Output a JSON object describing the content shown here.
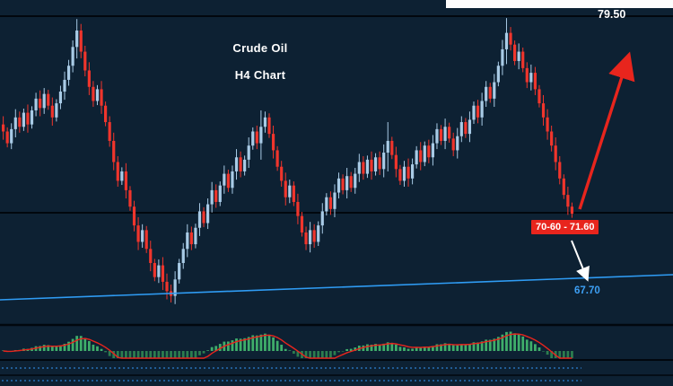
{
  "header": {
    "title_line1": "Crude Oil",
    "title_line2": "H4 Chart"
  },
  "labels": {
    "top_price": "79.50",
    "zone": "70-60 - 71.60",
    "support": "67.70"
  },
  "colors": {
    "background": "#0d2133",
    "bull_candle": "#a9cbe6",
    "bear_candle": "#f0352c",
    "hist_up": "#3fae6a",
    "hist_down": "#2c7d4f",
    "signal_line": "#e8251d",
    "trendline": "#2f9cf4",
    "level_line": "#01070e",
    "zone_label_bg": "#e8251d",
    "support_text": "#3da0f5",
    "arrow_up": "#e8251d",
    "arrow_down": "#ffffff",
    "strip_dotted": "#2e7fd0"
  },
  "chart_data": {
    "type": "candlestick",
    "title": "Crude Oil H4 Chart",
    "instrument": "Crude Oil",
    "timeframe": "H4",
    "price_range": [
      66.4,
      80.2
    ],
    "horizontal_levels": [
      {
        "price": 79.5,
        "label": "79.50"
      },
      {
        "price": 71.1,
        "label": ""
      }
    ],
    "supply_zone": "70-60 - 71.60",
    "trendline": {
      "label": "67.70",
      "direction": "rising-support"
    },
    "annotations": [
      {
        "type": "arrow",
        "color": "red",
        "meaning": "projected rally toward 79.50"
      },
      {
        "type": "arrow",
        "color": "white",
        "meaning": "possible dip toward trendline 67.70"
      }
    ],
    "first_open": 74.9,
    "closes": [
      74.6,
      74.1,
      74.7,
      75.2,
      74.8,
      75.4,
      74.9,
      75.5,
      76.0,
      75.6,
      76.2,
      75.7,
      75.2,
      75.8,
      76.3,
      76.8,
      77.4,
      78.2,
      78.9,
      78.0,
      77.2,
      76.5,
      75.9,
      76.4,
      75.7,
      75.0,
      74.2,
      73.3,
      72.5,
      72.9,
      72.1,
      71.4,
      70.6,
      69.9,
      70.4,
      69.6,
      69.0,
      68.4,
      68.9,
      68.2,
      67.8,
      67.6,
      68.3,
      69.0,
      69.6,
      70.3,
      69.8,
      70.5,
      71.2,
      70.7,
      71.5,
      72.1,
      71.6,
      72.3,
      72.8,
      72.2,
      72.9,
      73.5,
      72.9,
      73.4,
      74.0,
      74.6,
      74.1,
      74.8,
      75.2,
      74.5,
      73.8,
      73.1,
      72.5,
      71.8,
      72.3,
      71.6,
      71.0,
      70.3,
      69.8,
      70.4,
      69.9,
      70.6,
      71.2,
      71.8,
      71.3,
      72.0,
      72.6,
      72.1,
      72.7,
      72.2,
      72.8,
      73.3,
      72.8,
      73.4,
      72.9,
      73.5,
      73.0,
      73.7,
      74.2,
      73.6,
      73.0,
      72.5,
      73.1,
      72.6,
      73.2,
      73.8,
      73.3,
      74.0,
      73.5,
      74.1,
      74.7,
      74.2,
      74.8,
      74.3,
      73.8,
      74.4,
      75.0,
      74.5,
      75.1,
      75.7,
      75.2,
      75.9,
      76.5,
      76.0,
      76.7,
      77.4,
      78.1,
      78.8,
      78.3,
      77.6,
      78.0,
      77.3,
      76.7,
      77.1,
      76.4,
      75.8,
      75.2,
      74.6,
      74.0,
      73.3,
      72.6,
      71.9,
      71.4,
      71.1
    ],
    "wick_default": 0.25,
    "wick_overrides": {
      "17": 0.4,
      "18": 0.35,
      "19": 0.4,
      "40": 0.35,
      "41": 0.4,
      "63": 0.5,
      "94": 0.8,
      "122": 0.4,
      "123": 0.45,
      "133": 0.5
    },
    "indicator": {
      "type": "macd-histogram",
      "fast": 8,
      "slow": 17,
      "signal": 5
    }
  }
}
